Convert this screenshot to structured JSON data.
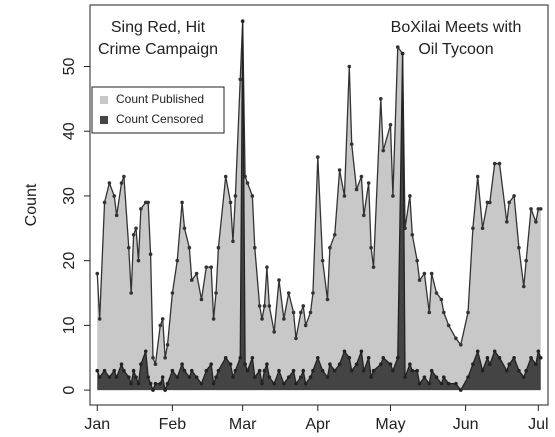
{
  "chart_data": {
    "type": "area",
    "ylabel": "Count",
    "annotations": [
      [
        "Sing Red,  Hit",
        "Crime Campaign"
      ],
      [
        "BoXilai Meets with",
        "Oil Tycoon"
      ]
    ],
    "x": [
      0,
      1,
      3,
      5,
      7,
      8,
      10,
      11,
      13,
      14,
      15,
      16,
      17,
      18,
      20,
      21,
      22,
      23,
      24,
      26,
      27,
      28,
      29,
      31,
      33,
      35,
      36,
      38,
      39,
      41,
      43,
      45,
      47,
      48,
      49,
      50,
      53,
      55,
      56,
      57,
      59,
      60,
      61,
      62,
      64,
      65,
      67,
      68,
      69,
      70,
      71,
      73,
      75,
      77,
      79,
      81,
      82,
      84,
      85,
      86,
      88,
      89,
      91,
      93,
      95,
      96,
      98,
      100,
      102,
      104,
      105,
      107,
      109,
      110,
      112,
      113,
      114,
      117,
      118,
      121,
      122,
      124,
      126,
      127,
      129,
      130,
      132,
      133,
      135,
      137,
      138,
      140,
      142,
      143,
      145,
      148,
      150,
      153,
      155,
      157,
      159,
      161,
      162,
      164,
      166,
      169,
      170,
      172,
      174,
      176,
      177,
      179,
      181,
      182,
      183
    ],
    "series": [
      {
        "name": "Count Published",
        "color": "#c8c8c8",
        "line": "#333333",
        "values": [
          18,
          11,
          29,
          32,
          30,
          27,
          32,
          33,
          22,
          15,
          24,
          25,
          20,
          28,
          29,
          29,
          21,
          5,
          4,
          10,
          11,
          5,
          7,
          15,
          20,
          29,
          25,
          22,
          17,
          18,
          14,
          19,
          19,
          11,
          15,
          22,
          33,
          29,
          23,
          30,
          48,
          57,
          33,
          32,
          30,
          22,
          13,
          11,
          13,
          19,
          13,
          9,
          17,
          11,
          15,
          12,
          8,
          12,
          13,
          10,
          12,
          15,
          36,
          20,
          14,
          22,
          24,
          34,
          30,
          50,
          38,
          31,
          33,
          27,
          32,
          22,
          19,
          45,
          37,
          41,
          30,
          53,
          52,
          25,
          30,
          24,
          20,
          17,
          18,
          12,
          18,
          15,
          14,
          12,
          10,
          8,
          7,
          12,
          25,
          33,
          25,
          29,
          29,
          35,
          35,
          26,
          29,
          30,
          22,
          16,
          20,
          28,
          26,
          28,
          28
        ]
      },
      {
        "name": "Count Censored",
        "color": "#444444",
        "line": "#222222",
        "values": [
          3,
          2,
          3,
          2,
          3,
          2,
          4,
          3,
          2,
          1,
          3,
          2,
          1,
          4,
          6,
          2,
          1,
          0,
          1,
          1,
          2,
          0,
          1,
          3,
          2,
          4,
          3,
          2,
          3,
          2,
          1,
          3,
          4,
          1,
          2,
          3,
          5,
          4,
          2,
          3,
          5,
          57,
          4,
          3,
          5,
          2,
          3,
          1,
          3,
          4,
          2,
          1,
          3,
          1,
          2,
          3,
          1,
          2,
          3,
          1,
          2,
          3,
          5,
          3,
          2,
          4,
          3,
          4,
          6,
          5,
          3,
          4,
          6,
          3,
          5,
          2,
          3,
          4,
          5,
          4,
          3,
          5,
          52,
          2,
          4,
          3,
          3,
          1,
          2,
          1,
          3,
          2,
          1,
          2,
          1,
          1,
          0,
          2,
          4,
          6,
          3,
          5,
          4,
          6,
          5,
          3,
          4,
          5,
          3,
          2,
          3,
          5,
          4,
          6,
          5
        ]
      }
    ],
    "xlim": [
      -3,
      186
    ],
    "xticks": [
      {
        "value": 0,
        "label": "Jan"
      },
      {
        "value": 31,
        "label": "Feb"
      },
      {
        "value": 60,
        "label": "Mar"
      },
      {
        "value": 91,
        "label": "Apr"
      },
      {
        "value": 121,
        "label": "May"
      },
      {
        "value": 152,
        "label": "Jun"
      },
      {
        "value": 182,
        "label": "Jul"
      }
    ],
    "ylim": [
      -2.3,
      59.5
    ],
    "yticks": [
      0,
      10,
      20,
      30,
      40,
      50
    ],
    "legend": "topleft"
  }
}
